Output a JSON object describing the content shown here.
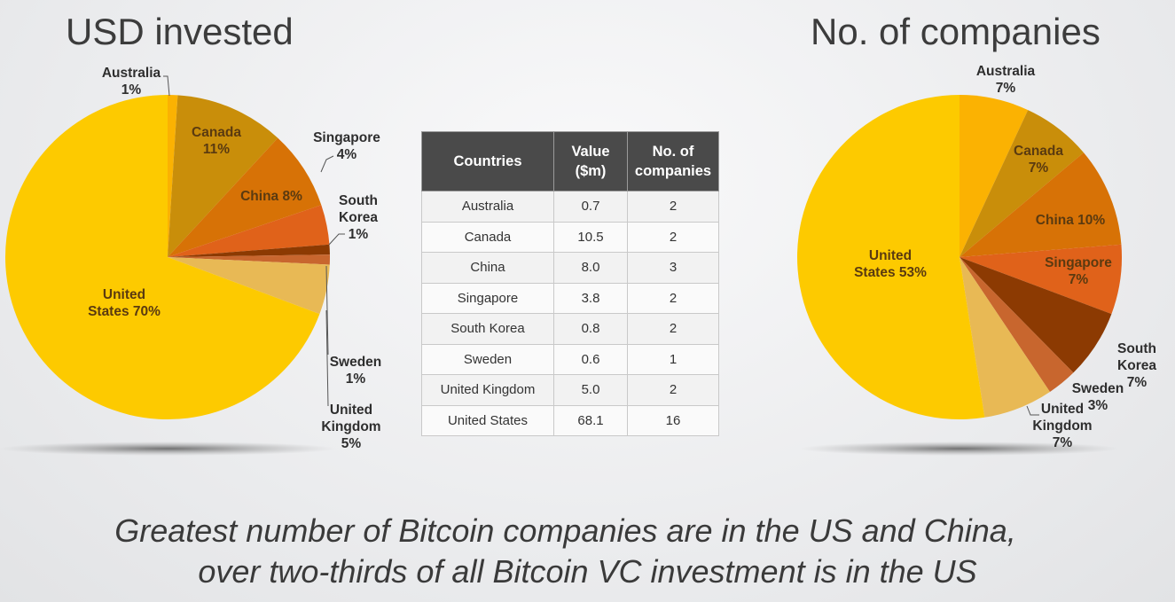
{
  "left_chart": {
    "title": "USD invested"
  },
  "right_chart": {
    "title": "No. of companies"
  },
  "table": {
    "headers": [
      "Countries",
      "Value ($m)",
      "No. of companies"
    ],
    "rows": [
      [
        "Australia",
        "0.7",
        "2"
      ],
      [
        "Canada",
        "10.5",
        "2"
      ],
      [
        "China",
        "8.0",
        "3"
      ],
      [
        "Singapore",
        "3.8",
        "2"
      ],
      [
        "South Korea",
        "0.8",
        "2"
      ],
      [
        "Sweden",
        "0.6",
        "1"
      ],
      [
        "United Kingdom",
        "5.0",
        "2"
      ],
      [
        "United States",
        "68.1",
        "16"
      ]
    ]
  },
  "caption": {
    "line1": "Greatest number of Bitcoin companies are in the US and China,",
    "line2": "over two-thirds of all Bitcoin VC investment is in the US"
  },
  "colors": {
    "australia": "#fbb202",
    "canada": "#c98e0a",
    "china": "#d77206",
    "singapore": "#e0621a",
    "south_korea": "#8c3a02",
    "sweden": "#c8662e",
    "united_kingdom": "#e8b955",
    "united_states": "#fdca00",
    "table_header_bg": "#4a4a4a"
  },
  "chart_data": [
    {
      "type": "pie",
      "title": "USD invested",
      "categories": [
        "Australia",
        "Canada",
        "China",
        "Singapore",
        "South Korea",
        "Sweden",
        "United Kingdom",
        "United States"
      ],
      "values": [
        1,
        11,
        8,
        4,
        1,
        1,
        5,
        70
      ],
      "value_unit": "%",
      "labels": [
        "Australia 1%",
        "Canada 11%",
        "China 8%",
        "Singapore 4%",
        "South Korea 1%",
        "Sweden 1%",
        "United Kingdom 5%",
        "United States 70%"
      ]
    },
    {
      "type": "pie",
      "title": "No. of companies",
      "categories": [
        "Australia",
        "Canada",
        "China",
        "Singapore",
        "South Korea",
        "Sweden",
        "United Kingdom",
        "United States"
      ],
      "values": [
        7,
        7,
        10,
        7,
        7,
        3,
        7,
        53
      ],
      "value_unit": "%",
      "labels": [
        "Australia 7%",
        "Canada 7%",
        "China 10%",
        "Singapore 7%",
        "South Korea 7%",
        "Sweden 3%",
        "United Kingdom 7%",
        "United States 53%"
      ]
    },
    {
      "type": "table",
      "columns": [
        "Countries",
        "Value ($m)",
        "No. of companies"
      ],
      "rows": [
        [
          "Australia",
          0.7,
          2
        ],
        [
          "Canada",
          10.5,
          2
        ],
        [
          "China",
          8.0,
          3
        ],
        [
          "Singapore",
          3.8,
          2
        ],
        [
          "South Korea",
          0.8,
          2
        ],
        [
          "Sweden",
          0.6,
          1
        ],
        [
          "United Kingdom",
          5.0,
          2
        ],
        [
          "United States",
          68.1,
          16
        ]
      ]
    }
  ]
}
